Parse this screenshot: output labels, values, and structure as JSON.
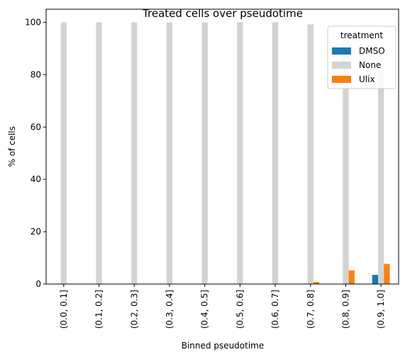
{
  "chart_data": {
    "type": "bar",
    "title": "Treated cells over pseudotime",
    "xlabel": "Binned pseudotime",
    "ylabel": "% of cells",
    "ylim": [
      0,
      105
    ],
    "yticks": [
      0,
      20,
      40,
      60,
      80,
      100
    ],
    "grid": false,
    "legend": {
      "title": "treatment",
      "placement": "top-right"
    },
    "categories": [
      "(0.0, 0.1]",
      "(0.1, 0.2]",
      "(0.2, 0.3]",
      "(0.3, 0.4]",
      "(0.4, 0.5]",
      "(0.5, 0.6]",
      "(0.6, 0.7]",
      "(0.7, 0.8]",
      "(0.8, 0.9]",
      "(0.9, 1.0]"
    ],
    "series": [
      {
        "name": "DMSO",
        "color": "#1f77b4",
        "values": [
          0,
          0,
          0,
          0,
          0,
          0,
          0,
          0,
          0,
          3.5
        ]
      },
      {
        "name": "None",
        "color": "#d3d3d3",
        "values": [
          100,
          100,
          100,
          100,
          100,
          100,
          100,
          99.2,
          94.8,
          88.8
        ]
      },
      {
        "name": "Ulix",
        "color": "#ff7f0e",
        "values": [
          0,
          0,
          0,
          0,
          0,
          0,
          0,
          0.8,
          5.2,
          7.7
        ]
      }
    ]
  }
}
